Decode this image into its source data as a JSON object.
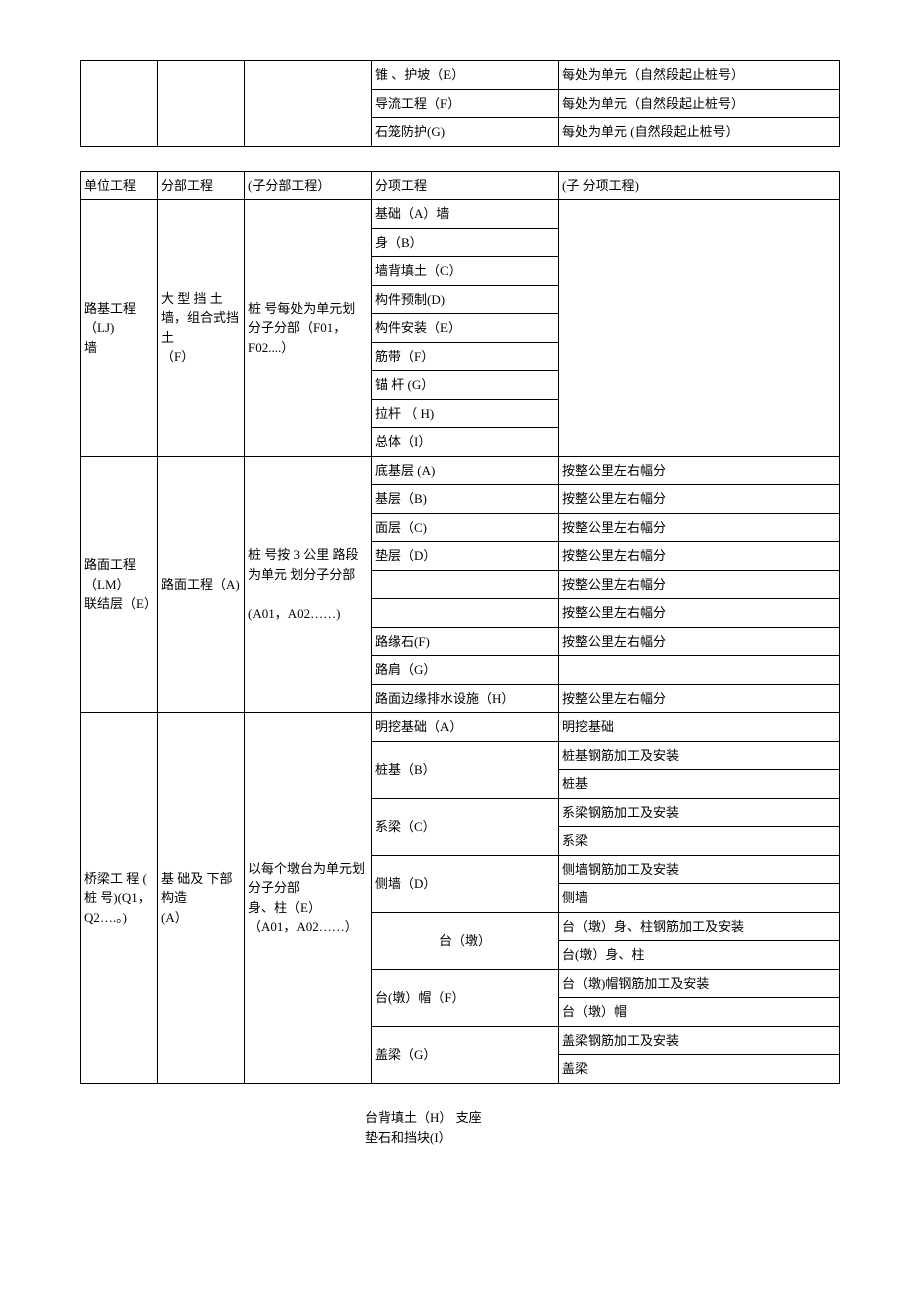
{
  "table1": {
    "rows": [
      {
        "c1": "",
        "c2": "",
        "c3": "",
        "c4": "锥 、护坡（E）",
        "c5": "每处为单元（自然段起止桩号）"
      },
      {
        "c1": "",
        "c2": "",
        "c3": "",
        "c4": "导流工程（F）",
        "c5": "每处为单元（自然段起止桩号）"
      },
      {
        "c1": "",
        "c2": "",
        "c3": "",
        "c4": "石笼防护(G)",
        "c5": "每处为单元 (自然段起止桩号）"
      }
    ]
  },
  "table2": {
    "header": {
      "c1": "单位工程",
      "c2": "分部工程",
      "c3": "(子分部工程）",
      "c4": "分项工程",
      "c5": "(子 分项工程)"
    },
    "sec1": {
      "c1": "路基工程（LJ)\n墙",
      "c2": "大 型 挡 土墙，组合式挡土\n（F）",
      "c3": "桩 号每处为单元划分子分部（F01，F02....）",
      "items": [
        "基础（A）墙",
        "身（B）",
        "墙背填土（C）",
        "构件预制(D)",
        "构件安装（E）",
        "筋带（F）",
        "锚 杆 (G）",
        "拉杆 （ H)",
        "总体（I）"
      ]
    },
    "sec2": {
      "c1": "路面工程（LM）\n联结层（E）",
      "c2": "路面工程（A)",
      "c3": "桩 号按   3    公里 路段为单元 划分子分部\n\n(A01，A02……)",
      "items": [
        {
          "c4": "底基层 (A)",
          "c5": "按整公里左右幅分"
        },
        {
          "c4": "基层（B)",
          "c5": "按整公里左右幅分"
        },
        {
          "c4": "面层（C)",
          "c5": "按整公里左右幅分"
        },
        {
          "c4": "垫层（D）",
          "c5": "按整公里左右幅分"
        },
        {
          "c4": "",
          "c5": "按整公里左右幅分"
        },
        {
          "c4": "",
          "c5": "按整公里左右幅分"
        },
        {
          "c4": "路缘石(F)",
          "c5": "按整公里左右幅分"
        },
        {
          "c4": "路肩（G）",
          "c5": ""
        },
        {
          "c4": "路面边缘排水设施（H）",
          "c5": "按整公里左右幅分"
        }
      ]
    },
    "sec3": {
      "c1": "桥梁工  程 (  桩   号)(Q1，Q2….。)",
      "c2": "基 础及 下部构造\n(A）",
      "c3": "以每个墩台为单元划分子分部\n身、柱（E）   （A01，A02……）",
      "items": [
        {
          "c4": "明挖基础（A）",
          "c5": "明挖基础"
        },
        {
          "c4_rs": 2,
          "c4": "桩基（B）",
          "c5": "桩基钢筋加工及安装"
        },
        {
          "c5": "桩基"
        },
        {
          "c4_rs": 2,
          "c4": "系梁（C）",
          "c5": "系梁钢筋加工及安装"
        },
        {
          "c5": "系梁"
        },
        {
          "c4_rs": 2,
          "c4": "侧墙（D）",
          "c5": "侧墙钢筋加工及安装"
        },
        {
          "c5": "侧墙"
        },
        {
          "c4_rs": 2,
          "c4": "台（墩）",
          "c5": "台（墩）身、柱钢筋加工及安装"
        },
        {
          "c5": "台(墩）身、柱"
        },
        {
          "c4_rs": 2,
          "c4": "台(墩）帽（F）",
          "c5": "台（墩)帽钢筋加工及安装"
        },
        {
          "c5": "台（墩）帽"
        },
        {
          "c4_rs": 2,
          "c4": "盖梁（G）",
          "c5": "盖梁钢筋加工及安装"
        },
        {
          "c5": "盖梁"
        }
      ]
    }
  },
  "bottom": {
    "line1": "台背填土（H）   支座",
    "line2": "垫石和挡块(I）"
  }
}
